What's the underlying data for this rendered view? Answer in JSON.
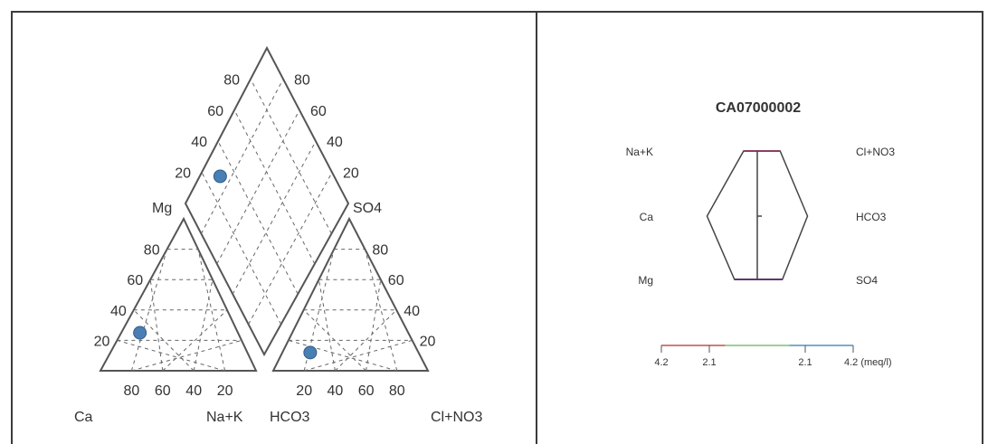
{
  "chart_data": [
    {
      "type": "piper",
      "labels": {
        "cation_apex": "Mg",
        "cation_left": "Ca",
        "cation_right": "Na+K",
        "anion_left": "HCO3",
        "anion_right": "Cl+NO3",
        "anion_apex": "SO4"
      },
      "ticks": [
        "20",
        "40",
        "60",
        "80"
      ],
      "sample": {
        "cations_percent": {
          "Ca": 63,
          "Mg": 25,
          "NaK": 12
        },
        "anions_percent": {
          "HCO3": 70,
          "SO4": 12,
          "ClNO3": 18
        },
        "diamond_percent": {
          "SO4_plus_Cl": 30,
          "Ca_plus_Mg": 88
        }
      },
      "colors": {
        "point": "#4a7fb3",
        "frame": "#555555",
        "grid": "#666666"
      }
    },
    {
      "type": "stiff",
      "title": "CA07000002",
      "left_labels": [
        "Na+K",
        "Ca",
        "Mg"
      ],
      "right_labels": [
        "Cl+NO3",
        "HCO3",
        "SO4"
      ],
      "scale": {
        "min": -4.2,
        "max": 4.2,
        "ticks": [
          -4.2,
          -2.1,
          2.1,
          4.2
        ]
      },
      "scale_labels": [
        "4.2",
        "2.1",
        "2.1",
        "4.2 (meq/l)"
      ],
      "values": {
        "NaK": -0.6,
        "Ca": -2.2,
        "Mg": -1.0,
        "ClNO3": 1.0,
        "HCO3": 2.2,
        "SO4": 1.1
      },
      "colors": {
        "polygon": "#444444",
        "scale_left": "#c05050",
        "scale_mid": "#80c070",
        "scale_right": "#5090c0"
      }
    }
  ]
}
